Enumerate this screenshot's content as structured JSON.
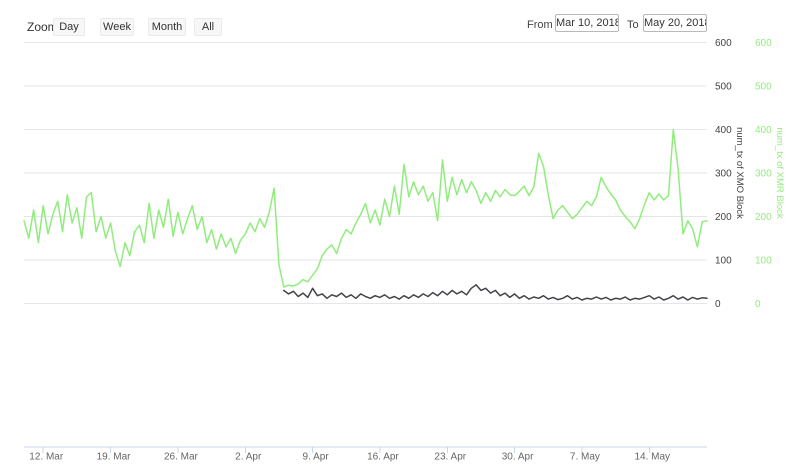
{
  "range_selector": {
    "zoom_label": "Zoom",
    "buttons": [
      {
        "label": "Day"
      },
      {
        "label": "Week"
      },
      {
        "label": "Month"
      },
      {
        "label": "All"
      }
    ],
    "from_label": "From",
    "from_value": "Mar 10, 2018",
    "to_label": "To",
    "to_value": "May 20, 2018"
  },
  "colors": {
    "xmo_series": "#434348",
    "xmr_series": "#90ed7d",
    "gridline": "#e6e6e6",
    "axis_line": "#ccd6eb",
    "x_tick_label": "#666666",
    "background": "#ffffff"
  },
  "chart_data": {
    "type": "line",
    "title": "",
    "x_range": {
      "start": "Mar 10, 2018",
      "end": "May 20, 2018",
      "days": 71
    },
    "grid": true,
    "legend": false,
    "ylim": [
      0,
      600
    ],
    "x_ticks": [
      {
        "day": 2,
        "label": "12. Mar"
      },
      {
        "day": 9,
        "label": "19. Mar"
      },
      {
        "day": 16,
        "label": "26. Mar"
      },
      {
        "day": 23,
        "label": "2. Apr"
      },
      {
        "day": 30,
        "label": "9. Apr"
      },
      {
        "day": 37,
        "label": "16. Apr"
      },
      {
        "day": 44,
        "label": "23. Apr"
      },
      {
        "day": 51,
        "label": "30. Apr"
      },
      {
        "day": 58,
        "label": "7. May"
      },
      {
        "day": 65,
        "label": "14. May"
      }
    ],
    "y_axes": [
      {
        "title": "num_tx of XMO Block",
        "color": "#434348",
        "ticks": [
          0,
          100,
          200,
          300,
          400,
          500,
          600
        ]
      },
      {
        "title": "num_tx of XMR Block",
        "color": "#90ed7d",
        "ticks": [
          0,
          100,
          200,
          300,
          400,
          500,
          600
        ]
      }
    ],
    "series": [
      {
        "name": "num_tx of XMO Block",
        "color": "#434348",
        "start_day": 27,
        "step_days": 0.5,
        "values": [
          30,
          22,
          28,
          16,
          24,
          14,
          35,
          18,
          22,
          12,
          20,
          16,
          24,
          14,
          20,
          12,
          22,
          16,
          12,
          18,
          14,
          20,
          12,
          16,
          10,
          18,
          12,
          20,
          14,
          22,
          16,
          25,
          18,
          28,
          20,
          30,
          22,
          28,
          20,
          35,
          43,
          30,
          35,
          24,
          30,
          18,
          24,
          14,
          22,
          12,
          18,
          10,
          15,
          12,
          18,
          10,
          14,
          9,
          12,
          18,
          10,
          14,
          8,
          12,
          10,
          15,
          10,
          14,
          8,
          12,
          10,
          15,
          8,
          12,
          10,
          14,
          18,
          10,
          15,
          8,
          12,
          18,
          10,
          15,
          8,
          14,
          10,
          13,
          12
        ]
      },
      {
        "name": "num_tx of XMR Block",
        "color": "#90ed7d",
        "start_day": 0,
        "step_days": 0.5,
        "values": [
          190,
          150,
          215,
          140,
          225,
          160,
          205,
          235,
          165,
          250,
          185,
          220,
          150,
          245,
          255,
          165,
          200,
          150,
          185,
          120,
          85,
          140,
          110,
          165,
          180,
          140,
          230,
          150,
          215,
          175,
          240,
          155,
          210,
          160,
          195,
          225,
          170,
          200,
          140,
          170,
          125,
          160,
          130,
          150,
          115,
          145,
          160,
          185,
          165,
          195,
          175,
          210,
          265,
          90,
          38,
          42,
          40,
          45,
          55,
          50,
          65,
          80,
          110,
          125,
          135,
          115,
          150,
          170,
          160,
          185,
          205,
          230,
          185,
          215,
          180,
          240,
          200,
          270,
          205,
          320,
          245,
          280,
          250,
          270,
          235,
          255,
          190,
          330,
          235,
          290,
          250,
          285,
          255,
          280,
          260,
          230,
          255,
          235,
          260,
          245,
          262,
          250,
          248,
          258,
          270,
          248,
          268,
          345,
          315,
          250,
          195,
          215,
          225,
          210,
          195,
          205,
          220,
          235,
          225,
          245,
          290,
          268,
          252,
          238,
          215,
          200,
          188,
          172,
          195,
          228,
          255,
          238,
          252,
          238,
          248,
          400,
          310,
          160,
          190,
          172,
          130,
          188,
          190
        ]
      }
    ]
  }
}
